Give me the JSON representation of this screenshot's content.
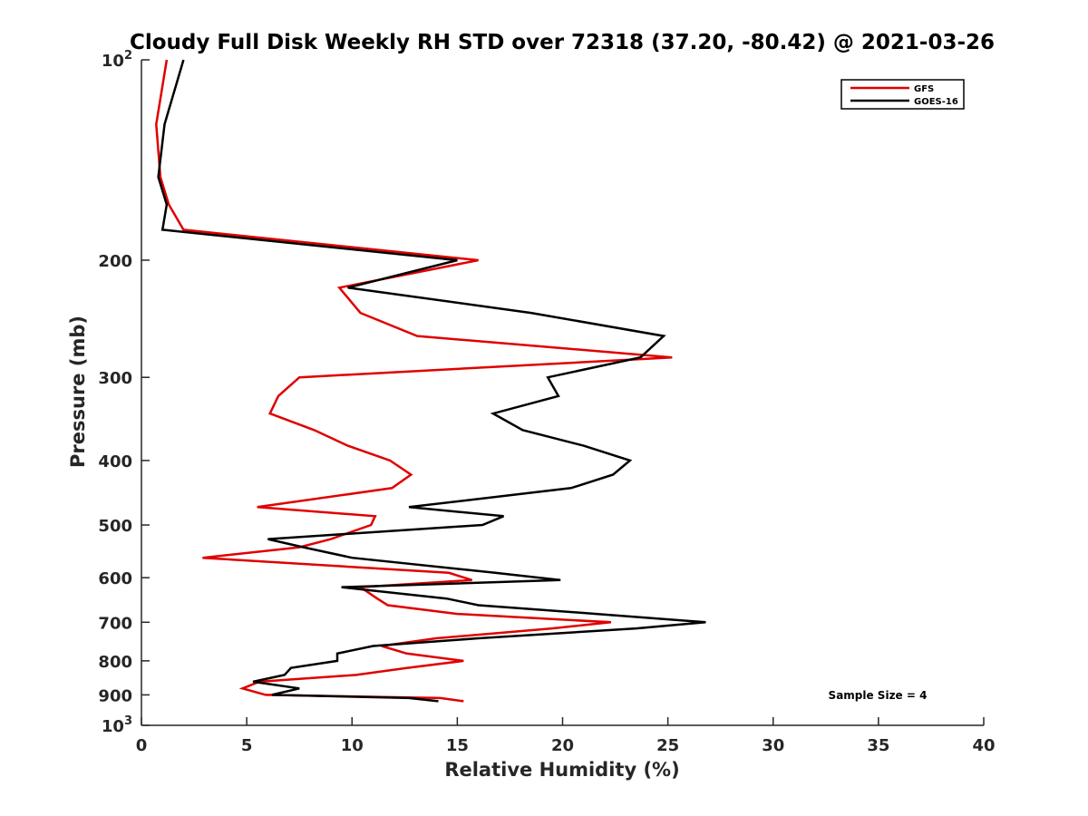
{
  "chart_data": {
    "type": "line",
    "title": "Cloudy Full Disk Weekly RH STD over 72318 (37.20, -80.42) @ 2021-03-26",
    "xlabel": "Relative Humidity (%)",
    "ylabel": "Pressure (mb)",
    "xlim": [
      0,
      40
    ],
    "ylim": [
      100,
      1000
    ],
    "yscale": "log",
    "y_reversed": true,
    "grid": false,
    "legend_position": "top-right",
    "x_ticks": [
      "0",
      "5",
      "10",
      "15",
      "20",
      "25",
      "30",
      "35",
      "40"
    ],
    "y_ticks": [
      {
        "value": 100,
        "base": "10",
        "exp": "2"
      },
      {
        "value": 200,
        "label": "200"
      },
      {
        "value": 300,
        "label": "300"
      },
      {
        "value": 400,
        "label": "400"
      },
      {
        "value": 500,
        "label": "500"
      },
      {
        "value": 600,
        "label": "600"
      },
      {
        "value": 700,
        "label": "700"
      },
      {
        "value": 800,
        "label": "800"
      },
      {
        "value": 900,
        "label": "900"
      },
      {
        "value": 1000,
        "base": "10",
        "exp": "3"
      }
    ],
    "annotation": "Sample Size = 4",
    "series": [
      {
        "name": "GFS",
        "color": "#e00000",
        "points": [
          [
            1.2,
            100
          ],
          [
            0.7,
            125
          ],
          [
            0.9,
            150
          ],
          [
            1.3,
            165
          ],
          [
            2.0,
            180
          ],
          [
            16.0,
            200
          ],
          [
            9.4,
            220
          ],
          [
            10.4,
            240
          ],
          [
            13.1,
            260
          ],
          [
            25.2,
            280
          ],
          [
            7.5,
            300
          ],
          [
            6.5,
            320
          ],
          [
            6.1,
            340
          ],
          [
            8.2,
            360
          ],
          [
            9.8,
            380
          ],
          [
            11.8,
            400
          ],
          [
            12.8,
            420
          ],
          [
            11.9,
            440
          ],
          [
            5.5,
            470
          ],
          [
            11.1,
            485
          ],
          [
            10.9,
            500
          ],
          [
            9.0,
            525
          ],
          [
            7.5,
            540
          ],
          [
            2.9,
            560
          ],
          [
            14.6,
            590
          ],
          [
            15.7,
            605
          ],
          [
            10.4,
            620
          ],
          [
            11.2,
            645
          ],
          [
            11.7,
            660
          ],
          [
            15.0,
            680
          ],
          [
            22.3,
            700
          ],
          [
            19.5,
            715
          ],
          [
            14.0,
            740
          ],
          [
            11.4,
            760
          ],
          [
            12.6,
            780
          ],
          [
            15.3,
            800
          ],
          [
            12.6,
            820
          ],
          [
            10.2,
            840
          ],
          [
            5.6,
            860
          ],
          [
            4.8,
            880
          ],
          [
            5.9,
            900
          ],
          [
            14.2,
            910
          ],
          [
            15.3,
            920
          ]
        ]
      },
      {
        "name": "GOES-16",
        "color": "#000000",
        "points": [
          [
            2.0,
            100
          ],
          [
            1.1,
            125
          ],
          [
            0.8,
            150
          ],
          [
            1.2,
            165
          ],
          [
            1.0,
            180
          ],
          [
            15.0,
            200
          ],
          [
            9.8,
            220
          ],
          [
            18.5,
            240
          ],
          [
            24.8,
            260
          ],
          [
            23.7,
            280
          ],
          [
            19.3,
            300
          ],
          [
            19.8,
            320
          ],
          [
            16.7,
            340
          ],
          [
            18.1,
            360
          ],
          [
            21.0,
            380
          ],
          [
            23.2,
            400
          ],
          [
            22.4,
            420
          ],
          [
            20.4,
            440
          ],
          [
            12.7,
            470
          ],
          [
            17.2,
            485
          ],
          [
            16.2,
            500
          ],
          [
            6.0,
            525
          ],
          [
            7.7,
            540
          ],
          [
            10.0,
            560
          ],
          [
            16.8,
            590
          ],
          [
            19.9,
            605
          ],
          [
            9.5,
            620
          ],
          [
            14.5,
            645
          ],
          [
            16.0,
            660
          ],
          [
            21.6,
            680
          ],
          [
            26.8,
            700
          ],
          [
            23.5,
            715
          ],
          [
            16.0,
            740
          ],
          [
            11.0,
            760
          ],
          [
            9.3,
            780
          ],
          [
            9.3,
            800
          ],
          [
            7.1,
            820
          ],
          [
            6.8,
            840
          ],
          [
            5.3,
            860
          ],
          [
            7.5,
            880
          ],
          [
            6.2,
            900
          ],
          [
            12.7,
            910
          ],
          [
            14.1,
            920
          ]
        ]
      }
    ]
  }
}
